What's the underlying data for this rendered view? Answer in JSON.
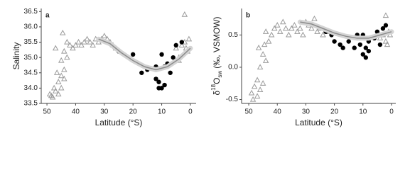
{
  "chart_data": [
    {
      "type": "scatter",
      "panel_label": "a",
      "x_label": "Latitude (°S)",
      "y_label": [
        "Salinity"
      ],
      "xlim": [
        52,
        -2
      ],
      "xticks": [
        50,
        40,
        30,
        20,
        10,
        0
      ],
      "ylim": [
        33.5,
        36.6
      ],
      "yticks": [
        33.5,
        {
          "value": 34,
          "label": "34.0"
        },
        34.5,
        {
          "value": 35,
          "label": "35.0"
        },
        35.5,
        {
          "value": 36,
          "label": "36.0"
        },
        36.5
      ],
      "series": [
        {
          "marker": "triangle",
          "color": "#9a9a9a",
          "x": [
            49,
            48,
            47,
            48.5,
            46,
            45,
            46,
            45,
            44,
            44,
            45,
            43,
            44,
            42,
            43,
            41,
            40,
            39,
            38,
            37,
            36,
            35,
            34,
            33,
            32,
            31,
            30,
            29,
            28,
            27,
            26,
            47.5,
            46.5,
            47,
            44.5,
            5,
            4,
            3,
            2,
            1,
            0.5,
            2,
            4,
            1.5
          ],
          "values": [
            33.8,
            33.7,
            33.9,
            33.75,
            33.8,
            34.0,
            34.2,
            34.4,
            34.3,
            34.6,
            34.9,
            35.0,
            35.2,
            35.4,
            35.5,
            35.3,
            35.4,
            35.5,
            35.4,
            35.5,
            35.6,
            35.5,
            35.4,
            35.6,
            35.5,
            35.6,
            35.7,
            35.6,
            35.5,
            35.4,
            35.3,
            34.0,
            34.5,
            35.3,
            35.8,
            35.3,
            35.0,
            35.4,
            35.5,
            35.2,
            35.6,
            36.4,
            34.9,
            35.3
          ]
        },
        {
          "marker": "circle",
          "color": "#000000",
          "x": [
            25,
            20,
            18,
            17,
            15,
            12,
            12,
            11,
            11,
            10,
            10,
            9,
            9,
            8,
            7,
            6,
            5,
            5,
            3
          ],
          "values": [
            35.2,
            35.1,
            34.8,
            34.5,
            34.6,
            34.7,
            34.3,
            34.0,
            34.2,
            35.1,
            34.0,
            34.1,
            34.7,
            34.8,
            34.5,
            35.0,
            35.4,
            34.9,
            35.5
          ]
        },
        {
          "marker": "curve",
          "color": "#8c8c8c",
          "x": [
            32,
            28,
            24,
            20,
            16,
            12,
            8,
            4,
            0
          ],
          "values": [
            35.6,
            35.45,
            35.15,
            34.9,
            34.7,
            34.6,
            34.7,
            34.95,
            35.3
          ]
        }
      ]
    },
    {
      "type": "scatter",
      "panel_label": "b",
      "x_label": "Latitude (°S)",
      "y_label": [
        "δ",
        "18",
        "O",
        "sw",
        "(‰, VSMOW)"
      ],
      "xlim": [
        52.5,
        -1.5
      ],
      "xticks": [
        50,
        40,
        30,
        20,
        10,
        0
      ],
      "ylim": [
        -0.56,
        0.91
      ],
      "yticks": [
        -0.5,
        {
          "value": 0,
          "label": "0.0"
        },
        0.5
      ],
      "series": [
        {
          "marker": "triangle",
          "color": "#9a9a9a",
          "x": [
            49,
            48,
            47,
            48.5,
            46,
            45,
            46,
            45,
            44,
            43,
            42,
            44,
            41,
            40,
            39,
            38,
            37,
            36,
            35,
            34,
            33,
            32,
            31,
            30,
            29,
            28,
            27,
            26,
            25,
            24,
            22,
            47,
            46.5,
            44.5,
            3,
            2,
            1,
            0.5,
            4,
            2,
            1.5
          ],
          "values": [
            -0.4,
            -0.3,
            -0.2,
            -0.5,
            -0.35,
            -0.25,
            0.0,
            0.2,
            0.1,
            0.4,
            0.5,
            0.55,
            0.6,
            0.65,
            0.55,
            0.7,
            0.6,
            0.5,
            0.6,
            0.65,
            0.55,
            0.6,
            0.5,
            0.7,
            0.65,
            0.6,
            0.75,
            0.55,
            0.6,
            0.5,
            0.55,
            -0.45,
            0.3,
            0.35,
            0.5,
            0.4,
            0.55,
            0.5,
            0.45,
            0.8,
            0.35
          ]
        },
        {
          "marker": "circle",
          "color": "#000000",
          "x": [
            23,
            21,
            20,
            18,
            17,
            15,
            13,
            12,
            11,
            10,
            10,
            9,
            9,
            8,
            8,
            6,
            5,
            3,
            2,
            4
          ],
          "values": [
            0.55,
            0.5,
            0.4,
            0.35,
            0.3,
            0.4,
            0.3,
            0.5,
            0.35,
            0.2,
            0.5,
            0.15,
            0.3,
            0.4,
            0.25,
            0.45,
            0.55,
            0.6,
            0.65,
            0.35
          ]
        },
        {
          "marker": "curve",
          "color": "#8c8c8c",
          "x": [
            32,
            28,
            24,
            20,
            16,
            12,
            8,
            4,
            0
          ],
          "values": [
            0.7,
            0.67,
            0.6,
            0.53,
            0.48,
            0.45,
            0.45,
            0.5,
            0.55
          ]
        }
      ]
    }
  ]
}
